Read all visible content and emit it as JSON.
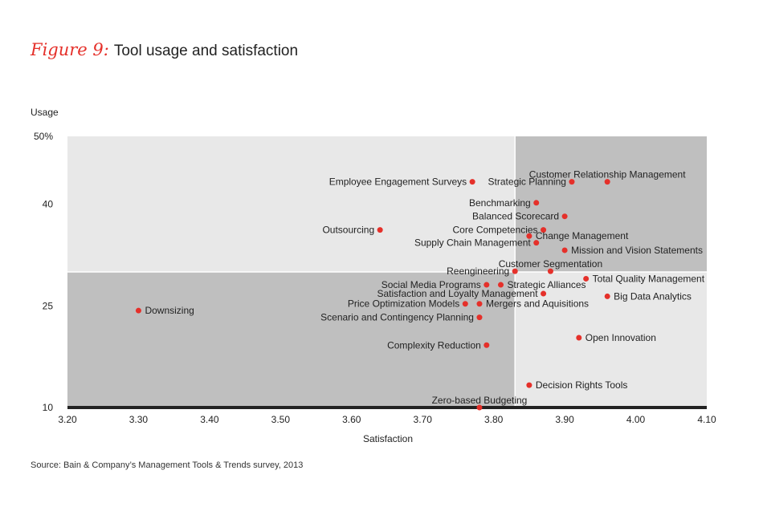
{
  "header": {
    "figure_label": "Figure 9:",
    "title": "Tool usage and satisfaction"
  },
  "footer": {
    "source": "Source: Bain & Company’s Management Tools & Trends survey, 2013"
  },
  "colors": {
    "point": "#e5302a",
    "quadrant_light": "#e8e8e8",
    "quadrant_dark": "#bfbfbf",
    "axis": "#222222"
  },
  "chart_data": {
    "type": "scatter",
    "title": "Tool usage and satisfaction",
    "xlabel": "Satisfaction",
    "ylabel": "Usage",
    "xlim": [
      3.2,
      4.1
    ],
    "ylim": [
      10,
      50
    ],
    "x_ticks": [
      3.2,
      3.3,
      3.4,
      3.5,
      3.6,
      3.7,
      3.8,
      3.9,
      4.0,
      4.1
    ],
    "x_tick_labels": [
      "3.20",
      "3.30",
      "3.40",
      "3.50",
      "3.60",
      "3.70",
      "3.80",
      "3.90",
      "4.00",
      "4.10"
    ],
    "y_ticks": [
      10,
      25,
      40,
      50
    ],
    "y_tick_labels": [
      "10",
      "25",
      "40",
      "50%"
    ],
    "quadrant_split": {
      "x": 3.83,
      "y": 30
    },
    "points": [
      {
        "label": "Customer Relationship Management",
        "x": 3.96,
        "y": 43.3,
        "label_pos": "above"
      },
      {
        "label": "Strategic Planning",
        "x": 3.91,
        "y": 43.3,
        "label_pos": "left"
      },
      {
        "label": "Employee Engagement Surveys",
        "x": 3.77,
        "y": 43.3,
        "label_pos": "left"
      },
      {
        "label": "Benchmarking",
        "x": 3.86,
        "y": 40.2,
        "label_pos": "left"
      },
      {
        "label": "Balanced Scorecard",
        "x": 3.9,
        "y": 38.2,
        "label_pos": "left"
      },
      {
        "label": "Outsourcing",
        "x": 3.64,
        "y": 36.2,
        "label_pos": "left"
      },
      {
        "label": "Core Competencies",
        "x": 3.87,
        "y": 36.2,
        "label_pos": "left"
      },
      {
        "label": "Change Management",
        "x": 3.85,
        "y": 35.3,
        "label_pos": "right"
      },
      {
        "label": "Supply Chain Management",
        "x": 3.86,
        "y": 34.3,
        "label_pos": "left"
      },
      {
        "label": "Mission and Vision Statements",
        "x": 3.9,
        "y": 33.2,
        "label_pos": "right"
      },
      {
        "label": "Customer Segmentation",
        "x": 3.88,
        "y": 30.1,
        "label_pos": "above"
      },
      {
        "label": "Reengineering",
        "x": 3.83,
        "y": 30.1,
        "label_pos": "left"
      },
      {
        "label": "Total Quality Management",
        "x": 3.93,
        "y": 29.0,
        "label_pos": "right"
      },
      {
        "label": "Social Media Programs",
        "x": 3.79,
        "y": 28.1,
        "label_pos": "left"
      },
      {
        "label": "Strategic Alliances",
        "x": 3.81,
        "y": 28.1,
        "label_pos": "right"
      },
      {
        "label": "Satisfaction and Loyalty Management",
        "x": 3.87,
        "y": 26.8,
        "label_pos": "left"
      },
      {
        "label": "Big Data Analytics",
        "x": 3.96,
        "y": 26.4,
        "label_pos": "right"
      },
      {
        "label": "Price Optimization Models",
        "x": 3.76,
        "y": 25.3,
        "label_pos": "left"
      },
      {
        "label": "Mergers and Aquisitions",
        "x": 3.78,
        "y": 25.3,
        "label_pos": "right"
      },
      {
        "label": "Downsizing",
        "x": 3.3,
        "y": 24.3,
        "label_pos": "right"
      },
      {
        "label": "Scenario and Contingency Planning",
        "x": 3.78,
        "y": 23.3,
        "label_pos": "left"
      },
      {
        "label": "Open Innovation",
        "x": 3.92,
        "y": 20.3,
        "label_pos": "right"
      },
      {
        "label": "Complexity Reduction",
        "x": 3.79,
        "y": 19.2,
        "label_pos": "left"
      },
      {
        "label": "Decision Rights Tools",
        "x": 3.85,
        "y": 13.3,
        "label_pos": "right"
      },
      {
        "label": "Zero-based Budgeting",
        "x": 3.78,
        "y": 10.0,
        "label_pos": "above"
      }
    ]
  }
}
